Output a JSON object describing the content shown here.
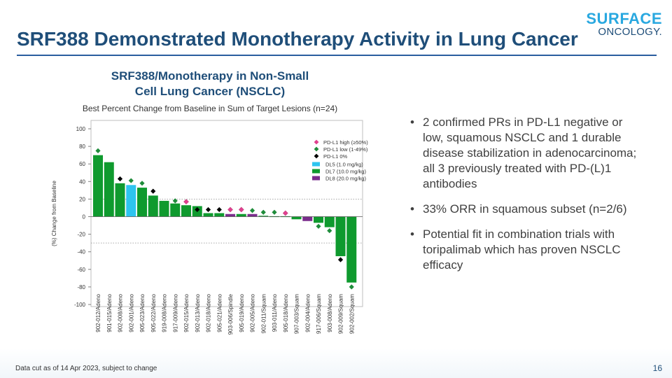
{
  "header": {
    "title": "SRF388 Demonstrated Monotherapy Activity in Lung Cancer",
    "logo_top": "SURFACE",
    "logo_bottom": "ONCOLOGY."
  },
  "chart": {
    "title_line1": "SRF388/Monotherapy in Non-Small",
    "title_line2": "Cell Lung Cancer (NSCLC)",
    "subtitle": "Best Percent Change from Baseline in Sum of Target Lesions (n=24)"
  },
  "bullets": [
    "2 confirmed PRs in PD-L1 negative or low, squamous NSCLC and 1 durable disease stabilization in adenocarcinoma; all 3 previously treated with PD-(L)1 antibodies",
    "33% ORR in squamous subset (n=2/6)",
    "Potential fit in combination trials with toripalimab which has proven NSCLC efficacy"
  ],
  "footer": {
    "note": "Data cut as of 14 Apr 2023, subject to change",
    "page": "16"
  },
  "chart_data": {
    "type": "bar",
    "title": "SRF388/Monotherapy in Non-Small Cell Lung Cancer (NSCLC)",
    "subtitle": "Best Percent Change from Baseline in Sum of Target Lesions (n=24)",
    "ylabel": "(%) Change from Baseline",
    "xlabel": "",
    "ylim": [
      -100,
      100
    ],
    "yticks": [
      100,
      80,
      60,
      40,
      20,
      0,
      -20,
      -40,
      -60,
      -80,
      -100
    ],
    "reference_lines": [
      20,
      -30
    ],
    "categories": [
      "902-012/Adeno",
      "901-015/Adeno",
      "902-008/Adeno",
      "902-001/Adeno",
      "905-023/Adeno",
      "905-022/Adeno",
      "919-008/Adeno",
      "917-009/Adeno",
      "902-015/Adeno",
      "902-013/Adeno",
      "902-018/Adeno",
      "905-021/Adeno",
      "903-006/Spindle",
      "905-019/Adeno",
      "902-005/Adeno",
      "902-011/Squam",
      "903-011/Adeno",
      "905-018/Adeno",
      "907-003/Squam",
      "902-004/Adeno",
      "917-006/Squam",
      "903-008/Adeno",
      "902-009/Squam",
      "902-002/Squam"
    ],
    "values": [
      70,
      62,
      38,
      36,
      33,
      24,
      18,
      15,
      13,
      12,
      4,
      4,
      3,
      3,
      3,
      1,
      0.5,
      0.5,
      -3,
      -5,
      -7,
      -12,
      -45,
      -75
    ],
    "dose": [
      "DL7",
      "DL7",
      "DL7",
      "DL5",
      "DL7",
      "DL7",
      "DL7",
      "DL7",
      "DL7",
      "DL7",
      "DL7",
      "DL7",
      "DL8",
      "DL7",
      "DL8",
      "DL7",
      "DL7",
      "DL7",
      "DL7",
      "DL8",
      "DL7",
      "DL7",
      "DL7",
      "DL7"
    ],
    "pdl1": [
      "low",
      null,
      "0",
      "low",
      "low",
      "0",
      null,
      "low",
      "high",
      "0",
      "0",
      "0",
      "high",
      "high",
      "low",
      "low",
      "low",
      "high",
      null,
      null,
      "low",
      "low",
      "0",
      "low"
    ],
    "pdl1_marker_values": [
      75,
      null,
      43,
      41,
      38,
      29,
      null,
      18,
      17,
      8,
      8,
      8,
      8,
      8,
      7,
      5,
      5,
      4,
      null,
      null,
      -11,
      -16,
      -49,
      -80
    ],
    "legend": {
      "pdl1": [
        {
          "key": "high",
          "label": "PD-L1 high (≥50%)",
          "color": "#e0408f"
        },
        {
          "key": "low",
          "label": "PD-L1 low (1-49%)",
          "color": "#1e8c3a"
        },
        {
          "key": "0",
          "label": "PD-L1 0%",
          "color": "#000000"
        }
      ],
      "dose": [
        {
          "key": "DL5",
          "label": "DL5 (1.0 mg/kg)",
          "color": "#2ec4ef"
        },
        {
          "key": "DL7",
          "label": "DL7 (10.0 mg/kg)",
          "color": "#0f9a2e"
        },
        {
          "key": "DL8",
          "label": "DL8 (20.0 mg/kg)",
          "color": "#7a2d8c"
        }
      ],
      "placement": "top-right"
    }
  }
}
